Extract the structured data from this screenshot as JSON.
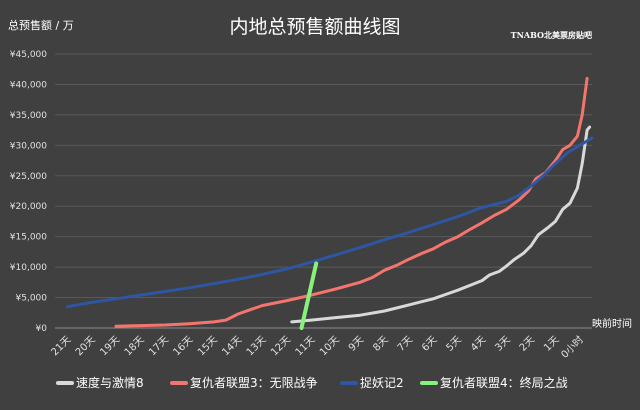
{
  "chart_data": {
    "type": "line",
    "title": "内地总预售额曲线图",
    "ylabel": "总预售额 / 万",
    "xlabel": "映前时间",
    "watermark": "TNABO北美票房贴吧",
    "ylim": [
      0,
      45000
    ],
    "yticks": [
      0,
      5000,
      10000,
      15000,
      20000,
      25000,
      30000,
      35000,
      40000,
      45000
    ],
    "ytick_labels": [
      "¥0",
      "¥5,000",
      "¥10,000",
      "¥15,000",
      "¥20,000",
      "¥25,000",
      "¥30,000",
      "¥35,000",
      "¥40,000",
      "¥45,000"
    ],
    "categories": [
      "21天",
      "20天",
      "19天",
      "18天",
      "17天",
      "16天",
      "15天",
      "14天",
      "13天",
      "12天",
      "11天",
      "10天",
      "9天",
      "8天",
      "7天",
      "6天",
      "5天",
      "4天",
      "3天",
      "2天",
      "1天",
      "0小时"
    ],
    "grid": true,
    "legend_position": "bottom",
    "series": [
      {
        "name": "速度与激情8",
        "color": "#d9d9d9",
        "points": [
          [
            9.2,
            1000
          ],
          [
            10.0,
            1300
          ],
          [
            11.0,
            1700
          ],
          [
            12.0,
            2100
          ],
          [
            13.0,
            2800
          ],
          [
            14.0,
            3800
          ],
          [
            14.5,
            4300
          ],
          [
            15.0,
            4800
          ],
          [
            15.5,
            5500
          ],
          [
            16.0,
            6200
          ],
          [
            16.5,
            7000
          ],
          [
            17.0,
            7800
          ],
          [
            17.3,
            8700
          ],
          [
            17.7,
            9300
          ],
          [
            18.0,
            10200
          ],
          [
            18.3,
            11200
          ],
          [
            18.7,
            12300
          ],
          [
            19.0,
            13500
          ],
          [
            19.3,
            15300
          ],
          [
            19.7,
            16500
          ],
          [
            20.0,
            17500
          ],
          [
            20.3,
            19500
          ],
          [
            20.6,
            20500
          ],
          [
            20.9,
            23000
          ],
          [
            21.1,
            27000
          ],
          [
            21.3,
            32500
          ],
          [
            21.4,
            33000
          ]
        ]
      },
      {
        "name": "复仇者联盟3：无限战争",
        "color": "#f4756d",
        "points": [
          [
            2.0,
            300
          ],
          [
            3.0,
            400
          ],
          [
            4.0,
            500
          ],
          [
            5.0,
            700
          ],
          [
            6.0,
            1000
          ],
          [
            6.5,
            1300
          ],
          [
            7.0,
            2300
          ],
          [
            7.5,
            3000
          ],
          [
            8.0,
            3700
          ],
          [
            9.0,
            4500
          ],
          [
            10.0,
            5400
          ],
          [
            11.0,
            6400
          ],
          [
            12.0,
            7500
          ],
          [
            12.5,
            8300
          ],
          [
            13.0,
            9500
          ],
          [
            13.5,
            10300
          ],
          [
            14.0,
            11300
          ],
          [
            14.5,
            12200
          ],
          [
            15.0,
            13000
          ],
          [
            15.5,
            14100
          ],
          [
            16.0,
            15000
          ],
          [
            16.5,
            16200
          ],
          [
            17.0,
            17300
          ],
          [
            17.5,
            18500
          ],
          [
            18.0,
            19500
          ],
          [
            18.5,
            21000
          ],
          [
            18.9,
            22500
          ],
          [
            19.2,
            24500
          ],
          [
            19.6,
            25500
          ],
          [
            20.0,
            27500
          ],
          [
            20.3,
            29300
          ],
          [
            20.6,
            30000
          ],
          [
            20.9,
            31500
          ],
          [
            21.1,
            35000
          ],
          [
            21.3,
            41000
          ]
        ]
      },
      {
        "name": "捉妖记2",
        "color": "#2d56a3",
        "points": [
          [
            0.0,
            3500
          ],
          [
            1.0,
            4200
          ],
          [
            2.0,
            4800
          ],
          [
            3.0,
            5400
          ],
          [
            4.0,
            6000
          ],
          [
            5.0,
            6600
          ],
          [
            6.0,
            7300
          ],
          [
            7.0,
            8000
          ],
          [
            8.0,
            8800
          ],
          [
            9.0,
            9700
          ],
          [
            10.0,
            10800
          ],
          [
            11.0,
            12000
          ],
          [
            12.0,
            13200
          ],
          [
            13.0,
            14500
          ],
          [
            14.0,
            15700
          ],
          [
            15.0,
            17000
          ],
          [
            16.0,
            18300
          ],
          [
            17.0,
            19800
          ],
          [
            18.0,
            20800
          ],
          [
            18.5,
            21800
          ],
          [
            19.0,
            23300
          ],
          [
            19.5,
            25000
          ],
          [
            20.0,
            27000
          ],
          [
            20.5,
            28800
          ],
          [
            21.0,
            30000
          ],
          [
            21.5,
            31200
          ]
        ]
      },
      {
        "name": "复仇者联盟4：终局之战",
        "color": "#86f27b",
        "points": [
          [
            9.6,
            0
          ],
          [
            10.2,
            10600
          ]
        ]
      }
    ]
  }
}
